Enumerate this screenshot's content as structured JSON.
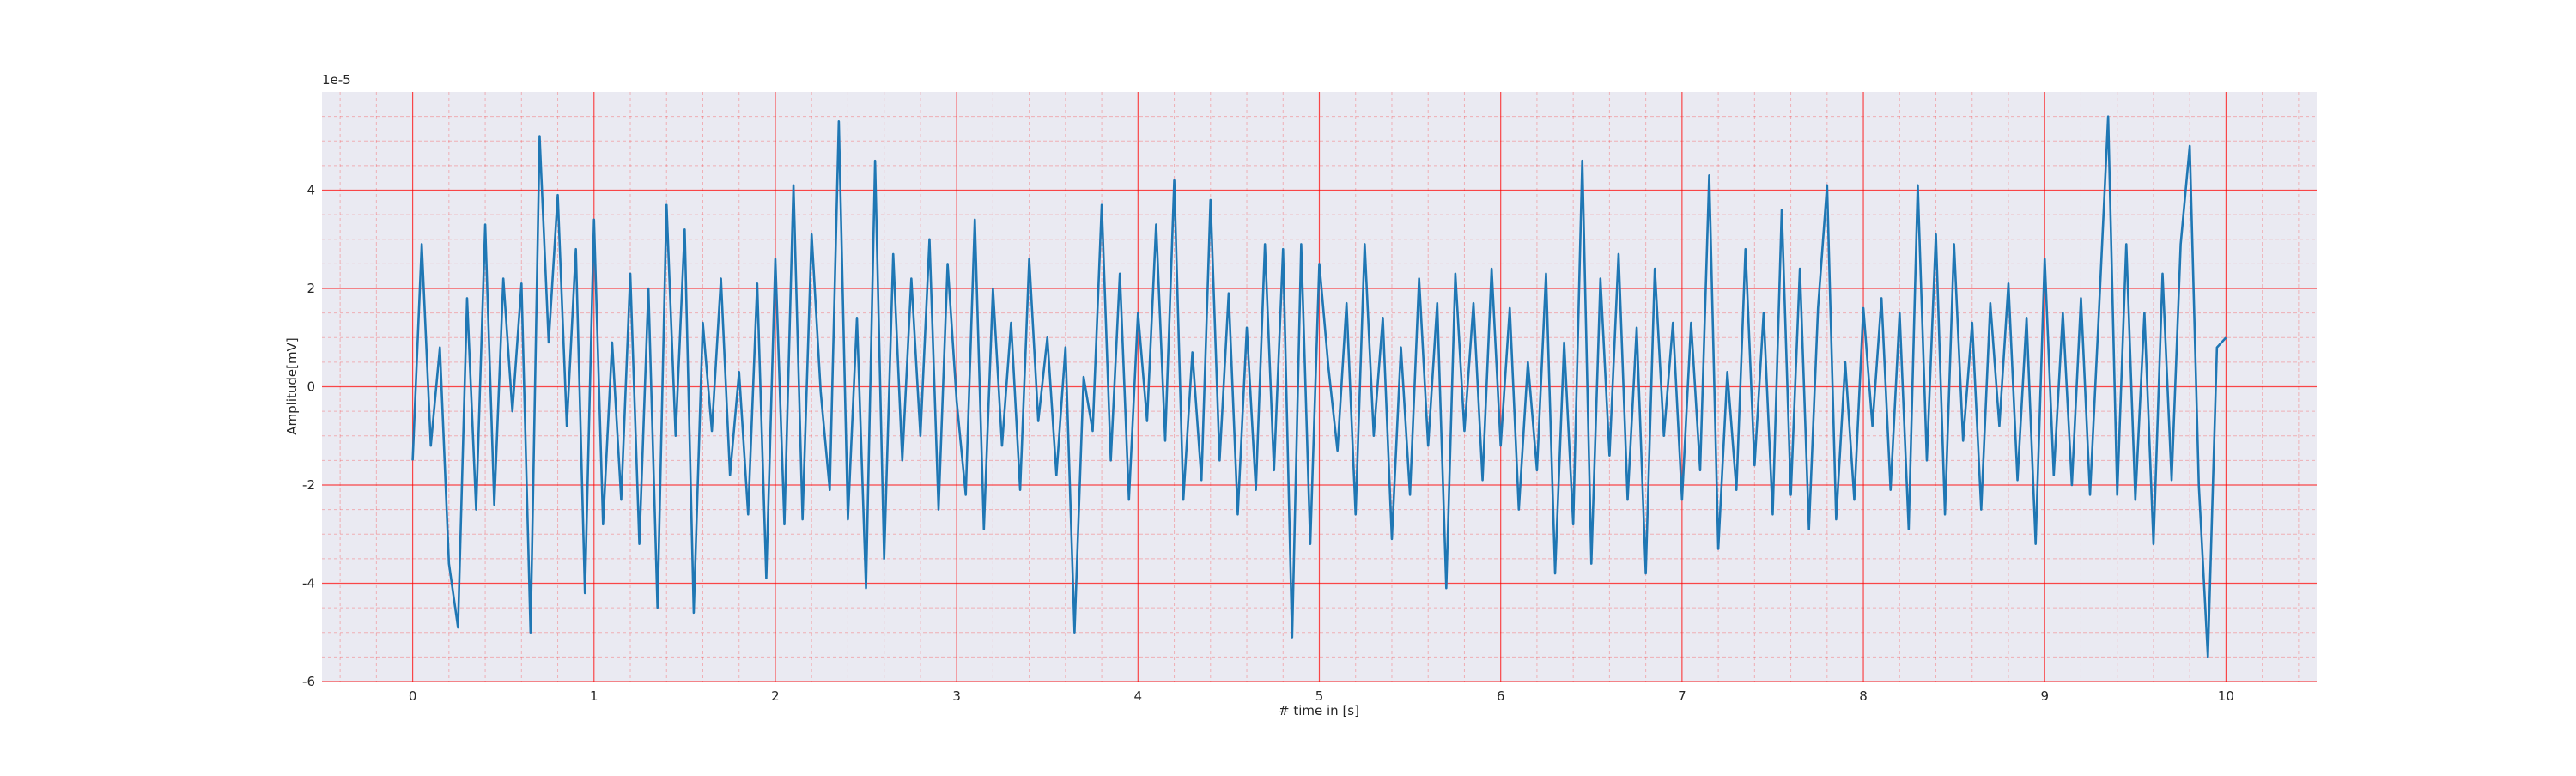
{
  "chart_data": {
    "type": "line",
    "x_label": "# time in [s]",
    "y_label": "Amplitude[mV]",
    "y_offset_label": "1e-5",
    "color": "#1f77b4",
    "grid": true,
    "grid_color": "#ff0000",
    "background": "#eaeaf2",
    "xlim": [
      -0.5,
      10.5
    ],
    "ylim": [
      -6,
      6
    ],
    "xticks": [
      0,
      1,
      2,
      3,
      4,
      5,
      6,
      7,
      8,
      9,
      10
    ],
    "yticks": [
      -6,
      -4,
      -2,
      0,
      2,
      4
    ],
    "xminorticks": [
      -0.4,
      -0.2,
      0.2,
      0.4,
      0.6,
      0.8,
      1.2,
      1.4,
      1.6,
      1.8,
      2.2,
      2.4,
      2.6,
      2.8,
      3.2,
      3.4,
      3.6,
      3.8,
      4.2,
      4.4,
      4.6,
      4.8,
      5.2,
      5.4,
      5.6,
      5.8,
      6.2,
      6.4,
      6.6,
      6.8,
      7.2,
      7.4,
      7.6,
      7.8,
      8.2,
      8.4,
      8.6,
      8.8,
      9.2,
      9.4,
      9.6,
      9.8,
      10.2,
      10.4
    ],
    "yminorticks": [
      -5.5,
      -5,
      -4.5,
      -3.5,
      -3,
      -2.5,
      -1.5,
      -1,
      -0.5,
      0.5,
      1,
      1.5,
      2.5,
      3,
      3.5,
      4.5,
      5,
      5.5
    ],
    "x": [
      0,
      0.05,
      0.1,
      0.15,
      0.2,
      0.25,
      0.3,
      0.35,
      0.4,
      0.45,
      0.5,
      0.55,
      0.6,
      0.65,
      0.7,
      0.75,
      0.8,
      0.85,
      0.9,
      0.95,
      1,
      1.05,
      1.1,
      1.15,
      1.2,
      1.25,
      1.3,
      1.35,
      1.4,
      1.45,
      1.5,
      1.55,
      1.6,
      1.65,
      1.7,
      1.75,
      1.8,
      1.85,
      1.9,
      1.95,
      2,
      2.05,
      2.1,
      2.15,
      2.2,
      2.25,
      2.3,
      2.35,
      2.4,
      2.45,
      2.5,
      2.55,
      2.6,
      2.65,
      2.7,
      2.75,
      2.8,
      2.85,
      2.9,
      2.95,
      3,
      3.05,
      3.1,
      3.15,
      3.2,
      3.25,
      3.3,
      3.35,
      3.4,
      3.45,
      3.5,
      3.55,
      3.6,
      3.65,
      3.7,
      3.75,
      3.8,
      3.85,
      3.9,
      3.95,
      4,
      4.05,
      4.1,
      4.15,
      4.2,
      4.25,
      4.3,
      4.35,
      4.4,
      4.45,
      4.5,
      4.55,
      4.6,
      4.65,
      4.7,
      4.75,
      4.8,
      4.85,
      4.9,
      4.95,
      5,
      5.05,
      5.1,
      5.15,
      5.2,
      5.25,
      5.3,
      5.35,
      5.4,
      5.45,
      5.5,
      5.55,
      5.6,
      5.65,
      5.7,
      5.75,
      5.8,
      5.85,
      5.9,
      5.95,
      6,
      6.05,
      6.1,
      6.15,
      6.2,
      6.25,
      6.3,
      6.35,
      6.4,
      6.45,
      6.5,
      6.55,
      6.6,
      6.65,
      6.7,
      6.75,
      6.8,
      6.85,
      6.9,
      6.95,
      7,
      7.05,
      7.1,
      7.15,
      7.2,
      7.25,
      7.3,
      7.35,
      7.4,
      7.45,
      7.5,
      7.55,
      7.6,
      7.65,
      7.7,
      7.75,
      7.8,
      7.85,
      7.9,
      7.95,
      8,
      8.05,
      8.1,
      8.15,
      8.2,
      8.25,
      8.3,
      8.35,
      8.4,
      8.45,
      8.5,
      8.55,
      8.6,
      8.65,
      8.7,
      8.75,
      8.8,
      8.85,
      8.9,
      8.95,
      9,
      9.05,
      9.1,
      9.15,
      9.2,
      9.25,
      9.3,
      9.35,
      9.4,
      9.45,
      9.5,
      9.55,
      9.6,
      9.65,
      9.7,
      9.75,
      9.8,
      9.85,
      9.9,
      9.95,
      10
    ],
    "values": [
      -1.5,
      2.9,
      -1.2,
      0.8,
      -3.6,
      -4.9,
      1.8,
      -2.5,
      3.3,
      -2.4,
      2.2,
      -0.5,
      2.1,
      -5.0,
      5.1,
      0.9,
      3.9,
      -0.8,
      2.8,
      -4.2,
      3.4,
      -2.8,
      0.9,
      -2.3,
      2.3,
      -3.2,
      2.0,
      -4.5,
      3.7,
      -1.0,
      3.2,
      -4.6,
      1.3,
      -0.9,
      2.2,
      -1.8,
      0.3,
      -2.6,
      2.1,
      -3.9,
      2.6,
      -2.8,
      4.1,
      -2.7,
      3.1,
      -0.1,
      -2.1,
      5.4,
      -2.7,
      1.4,
      -4.1,
      4.6,
      -3.5,
      2.7,
      -1.5,
      2.2,
      -1.0,
      3.0,
      -2.5,
      2.5,
      -0.3,
      -2.2,
      3.4,
      -2.9,
      2.0,
      -1.2,
      1.3,
      -2.1,
      2.6,
      -0.7,
      1.0,
      -1.8,
      0.8,
      -5.0,
      0.2,
      -0.9,
      3.7,
      -1.5,
      2.3,
      -2.3,
      1.5,
      -0.7,
      3.3,
      -1.1,
      4.2,
      -2.3,
      0.7,
      -1.9,
      3.8,
      -1.5,
      1.9,
      -2.6,
      1.2,
      -2.1,
      2.9,
      -1.7,
      2.8,
      -5.1,
      2.9,
      -3.2,
      2.5,
      0.4,
      -1.3,
      1.7,
      -2.6,
      2.9,
      -1.0,
      1.4,
      -3.1,
      0.8,
      -2.2,
      2.2,
      -1.2,
      1.7,
      -4.1,
      2.3,
      -0.9,
      1.7,
      -1.9,
      2.4,
      -1.2,
      1.6,
      -2.5,
      0.5,
      -1.7,
      2.3,
      -3.8,
      0.9,
      -2.8,
      4.6,
      -3.6,
      2.2,
      -1.4,
      2.7,
      -2.3,
      1.2,
      -3.8,
      2.4,
      -1.0,
      1.3,
      -2.3,
      1.3,
      -1.7,
      4.3,
      -3.3,
      0.3,
      -2.1,
      2.8,
      -1.6,
      1.5,
      -2.6,
      3.6,
      -2.2,
      2.4,
      -2.9,
      1.6,
      4.1,
      -2.7,
      0.5,
      -2.3,
      1.6,
      -0.8,
      1.8,
      -2.1,
      1.5,
      -2.9,
      4.1,
      -1.5,
      3.1,
      -2.6,
      2.9,
      -1.1,
      1.3,
      -2.5,
      1.7,
      -0.8,
      2.1,
      -1.9,
      1.4,
      -3.2,
      2.6,
      -1.8,
      1.5,
      -2.0,
      1.8,
      -2.2,
      1.6,
      5.5,
      -2.2,
      2.9,
      -2.3,
      1.5,
      -3.2,
      2.3,
      -1.9,
      2.9,
      4.9,
      -2.0,
      -5.5,
      0.8,
      1.0
    ]
  }
}
